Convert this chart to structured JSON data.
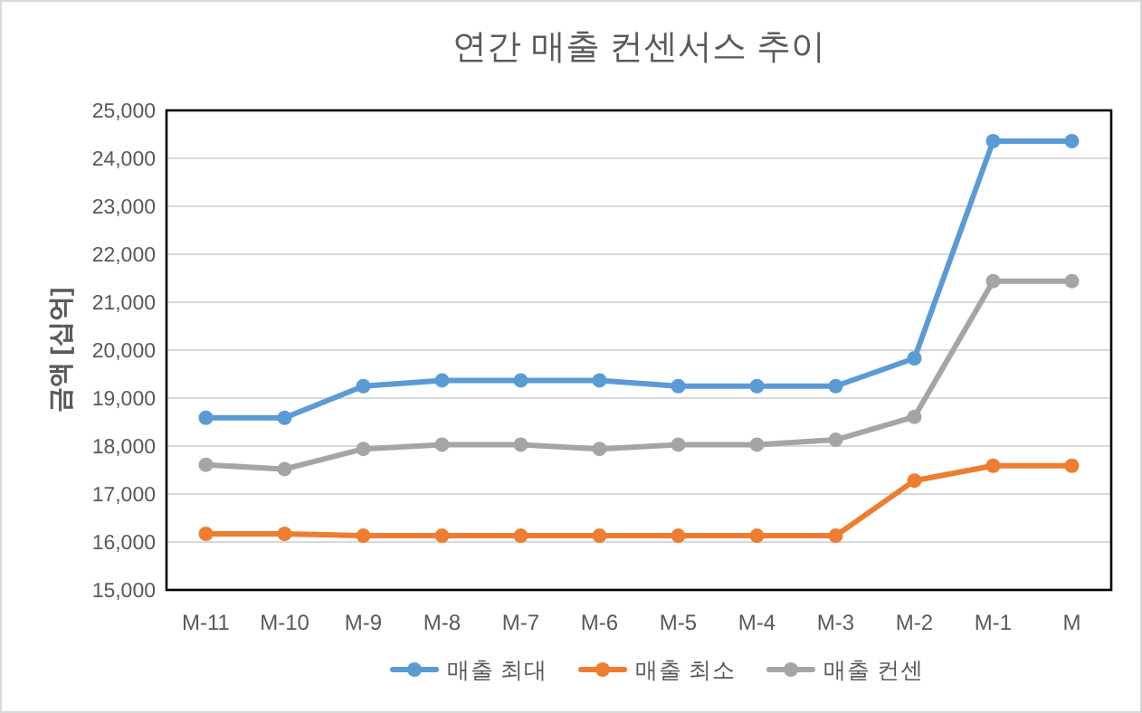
{
  "chart_data": {
    "type": "line",
    "title": "연간 매출 컨센서스 추이",
    "ylabel": "금액 [십억]",
    "categories": [
      "M-11",
      "M-10",
      "M-9",
      "M-8",
      "M-7",
      "M-6",
      "M-5",
      "M-4",
      "M-3",
      "M-2",
      "M-1",
      "M"
    ],
    "series": [
      {
        "name": "매출 최대",
        "color": "#5b9bd5",
        "values": [
          18590,
          18590,
          19250,
          19370,
          19370,
          19370,
          19250,
          19250,
          19250,
          19830,
          24360,
          24360
        ]
      },
      {
        "name": "매출 최소",
        "color": "#ed7d31",
        "values": [
          16170,
          16170,
          16130,
          16130,
          16130,
          16130,
          16130,
          16130,
          16130,
          17280,
          17590,
          17590
        ]
      },
      {
        "name": "매출 컨센",
        "color": "#a5a5a5",
        "values": [
          17610,
          17520,
          17940,
          18030,
          18030,
          17940,
          18030,
          18030,
          18130,
          18610,
          21440,
          21440
        ]
      }
    ],
    "ylim": [
      15000,
      25000
    ],
    "yticks": [
      {
        "value": 15000,
        "label": "15,000"
      },
      {
        "value": 16000,
        "label": "16,000"
      },
      {
        "value": 17000,
        "label": "17,000"
      },
      {
        "value": 18000,
        "label": "18,000"
      },
      {
        "value": 19000,
        "label": "19,000"
      },
      {
        "value": 20000,
        "label": "20,000"
      },
      {
        "value": 21000,
        "label": "21,000"
      },
      {
        "value": 22000,
        "label": "22,000"
      },
      {
        "value": 23000,
        "label": "23,000"
      },
      {
        "value": 24000,
        "label": "24,000"
      },
      {
        "value": 25000,
        "label": "25,000"
      }
    ],
    "grid": "y",
    "legend": "bottom",
    "marker": "circle",
    "line_style": "solid"
  }
}
